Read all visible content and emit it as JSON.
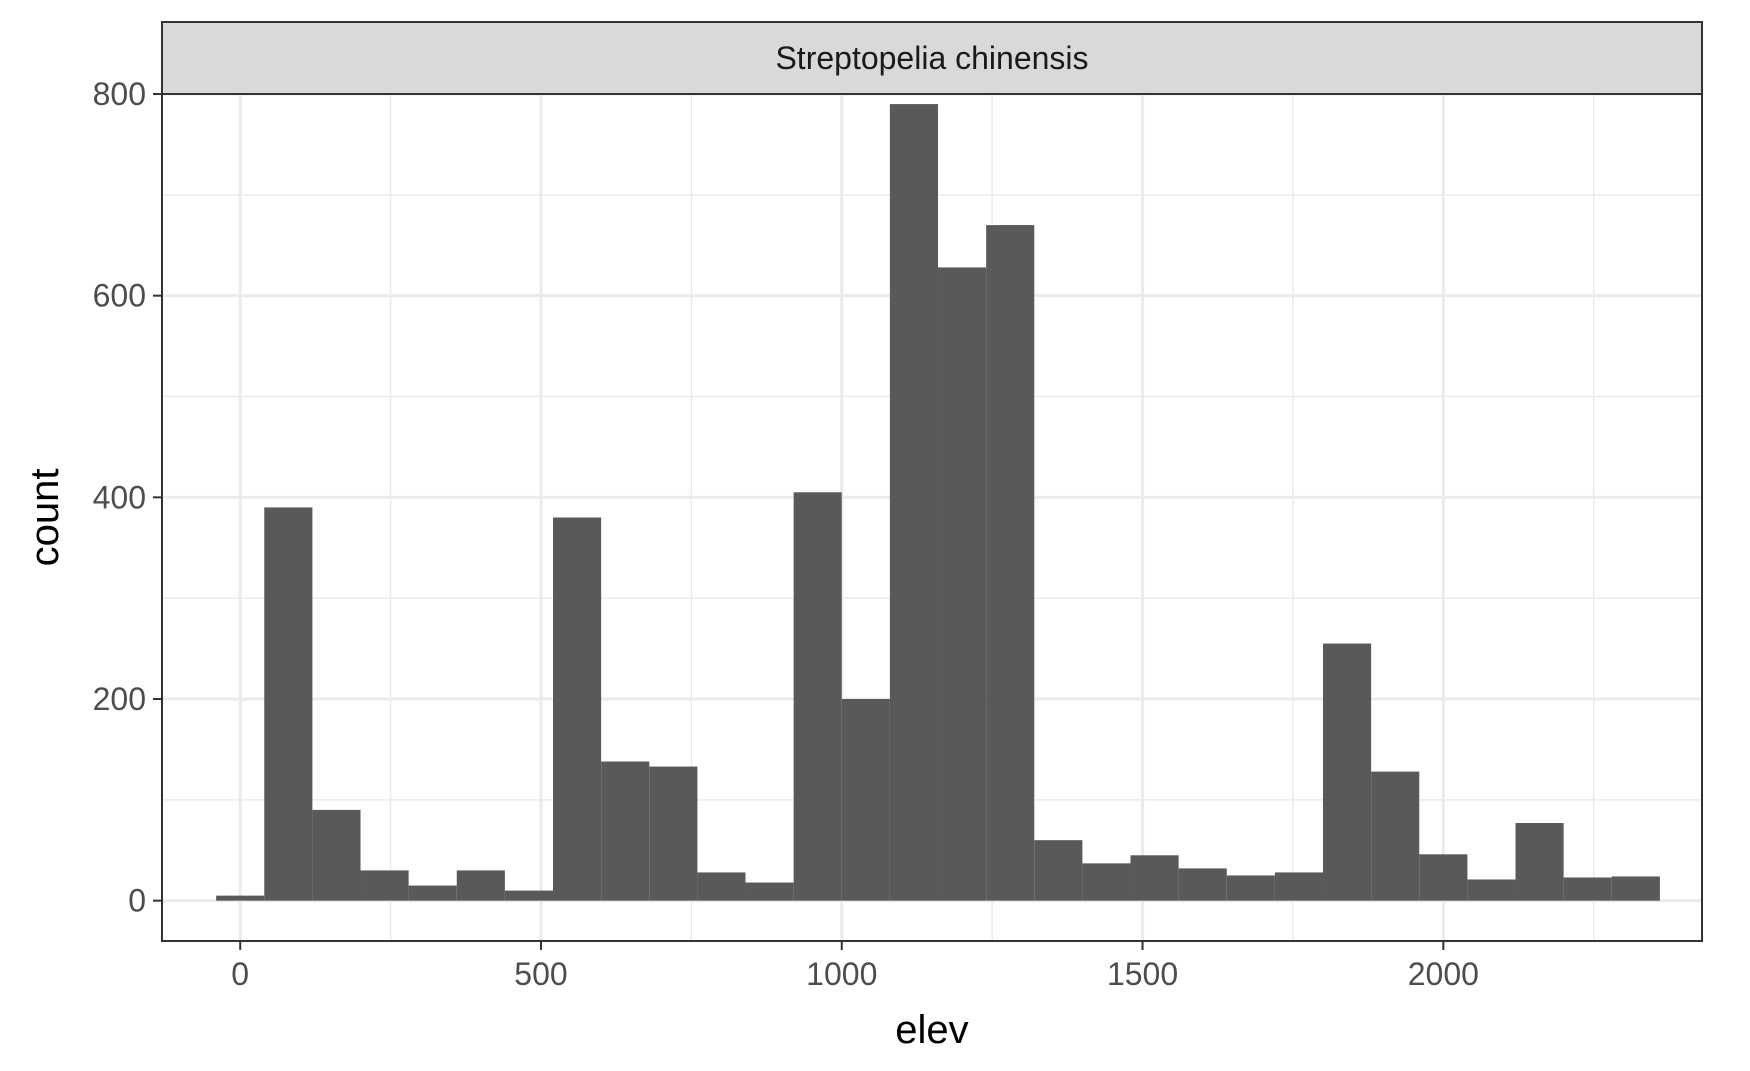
{
  "chart_data": {
    "type": "bar",
    "subtype": "histogram",
    "title": "",
    "facet_label": "Streptopelia chinensis",
    "xlabel": "elev",
    "ylabel": "count",
    "xlim": [
      -130,
      2430
    ],
    "ylim": [
      -40,
      800
    ],
    "x_ticks": [
      0,
      500,
      1000,
      1500,
      2000
    ],
    "x_tick_labels": [
      "0",
      "500",
      "1000",
      "1500",
      "2000"
    ],
    "y_ticks": [
      0,
      200,
      400,
      600,
      800
    ],
    "y_tick_labels": [
      "0",
      "200",
      "400",
      "600",
      "800"
    ],
    "x_minor_breaks": [
      250,
      750,
      1250,
      1750,
      2250
    ],
    "y_minor_breaks": [
      100,
      300,
      500,
      700
    ],
    "grid": true,
    "bin_width": 80,
    "bin_centers": [
      0,
      80,
      160,
      240,
      320,
      400,
      480,
      560,
      640,
      720,
      800,
      880,
      960,
      1040,
      1120,
      1200,
      1280,
      1360,
      1440,
      1520,
      1600,
      1680,
      1760,
      1840,
      1920,
      2000,
      2080,
      2160,
      2240,
      2320
    ],
    "values": [
      5,
      390,
      90,
      30,
      15,
      30,
      10,
      380,
      138,
      133,
      28,
      18,
      405,
      200,
      790,
      628,
      670,
      60,
      37,
      45,
      32,
      25,
      28,
      255,
      128,
      46,
      21,
      77,
      23,
      24
    ],
    "bar_color": "#595959",
    "panel_border_color": "#333333",
    "strip_fill": "#d9d9d9",
    "gridline_color": "#ebebeb"
  }
}
